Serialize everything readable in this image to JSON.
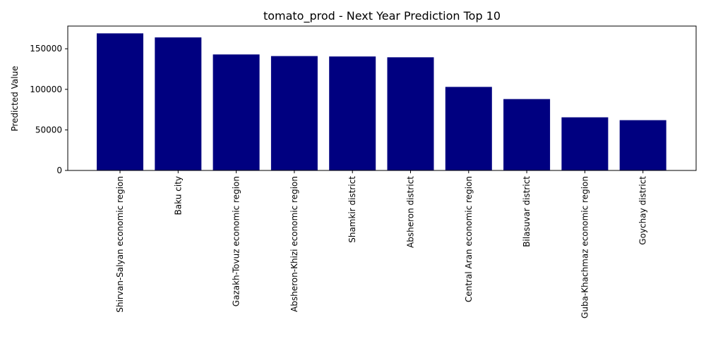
{
  "chart_data": {
    "type": "bar",
    "title": "tomato_prod - Next Year Prediction Top 10",
    "xlabel": "",
    "ylabel": "Predicted Value",
    "categories": [
      "Shirvan-Salyan economic region",
      "Baku city",
      "Gazakh-Tovuz economic region",
      "Absheron-Khizi economic region",
      "Shamkir district",
      "Absheron district",
      "Central Aran economic region",
      "Bilasuvar district",
      "Guba-Khachmaz economic region",
      "Goychay district"
    ],
    "values": [
      169000,
      164000,
      143000,
      141000,
      140500,
      139500,
      103000,
      88000,
      65500,
      62000
    ],
    "ylim": [
      0,
      178000
    ],
    "yticks": [
      0,
      50000,
      100000,
      150000
    ],
    "ytick_labels": [
      "0",
      "50000",
      "100000",
      "150000"
    ],
    "bar_color": "#000080",
    "grid": false,
    "legend": "none"
  }
}
